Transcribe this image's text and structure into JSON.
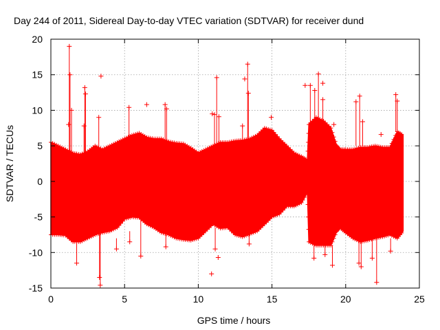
{
  "chart_data": {
    "type": "scatter",
    "title": "Day 244 of 2011, Sidereal Day-to-day VTEC variation (SDTVAR) for receiver dund",
    "xlabel": "GPS time / hours",
    "ylabel": "SDTVAR / TECUs",
    "xlim": [
      0,
      25
    ],
    "ylim": [
      -15,
      20
    ],
    "xticks": [
      0,
      5,
      10,
      15,
      20,
      25
    ],
    "yticks": [
      -15,
      -10,
      -5,
      0,
      5,
      10,
      15,
      20
    ],
    "grid": true,
    "series": [
      {
        "name": "SDTVAR",
        "color": "#ff0000",
        "marker": "plus",
        "envelope": {
          "x": [
            0.0,
            0.5,
            1.0,
            1.5,
            2.0,
            2.5,
            3.0,
            3.5,
            4.0,
            4.5,
            5.0,
            5.5,
            6.0,
            6.5,
            7.0,
            7.5,
            8.0,
            8.5,
            9.0,
            9.5,
            10.0,
            10.5,
            11.0,
            11.5,
            12.0,
            12.5,
            13.0,
            13.5,
            14.0,
            14.5,
            15.0,
            15.5,
            16.0,
            16.5,
            17.0,
            17.4,
            17.5,
            18.0,
            18.5,
            19.0,
            19.4,
            19.6,
            20.0,
            20.5,
            21.0,
            21.5,
            22.0,
            22.5,
            23.0,
            23.5,
            23.9
          ],
          "upper": [
            5.5,
            5.0,
            4.5,
            4.0,
            3.8,
            4.2,
            5.0,
            4.5,
            5.0,
            5.5,
            6.0,
            6.5,
            6.8,
            6.2,
            6.0,
            6.0,
            5.6,
            5.4,
            5.3,
            4.7,
            4.0,
            4.5,
            5.0,
            5.5,
            5.5,
            5.7,
            5.8,
            6.0,
            6.5,
            7.5,
            7.2,
            6.0,
            5.0,
            4.0,
            3.5,
            3.0,
            8.0,
            9.0,
            8.5,
            7.5,
            5.0,
            4.5,
            4.5,
            4.5,
            4.8,
            4.8,
            5.0,
            4.8,
            4.8,
            7.0,
            6.5
          ],
          "lower": [
            -7.5,
            -7.5,
            -7.6,
            -8.5,
            -8.5,
            -8.0,
            -7.5,
            -7.2,
            -7.0,
            -6.5,
            -5.3,
            -5.0,
            -5.1,
            -6.0,
            -6.5,
            -7.2,
            -7.5,
            -8.0,
            -8.2,
            -8.3,
            -8.0,
            -7.0,
            -6.0,
            -6.6,
            -6.5,
            -7.5,
            -7.8,
            -7.4,
            -7.0,
            -6.0,
            -5.0,
            -4.6,
            -3.5,
            -3.5,
            -3.0,
            -1.5,
            -8.5,
            -9.0,
            -9.0,
            -9.0,
            -7.0,
            -6.5,
            -7.2,
            -8.0,
            -8.5,
            -8.3,
            -8.0,
            -7.8,
            -7.5,
            -8.0,
            -7.0
          ]
        },
        "spikes": [
          {
            "x": 1.25,
            "from": 2.0,
            "to": 19.0
          },
          {
            "x": 1.3,
            "from": -5.0,
            "to": 15.0
          },
          {
            "x": 1.4,
            "from": -8.0,
            "to": 10.0
          },
          {
            "x": 1.75,
            "from": -8.0,
            "to": -11.5
          },
          {
            "x": 2.3,
            "from": 3.0,
            "to": 13.2
          },
          {
            "x": 2.35,
            "from": 3.0,
            "to": 12.3
          },
          {
            "x": 2.25,
            "from": 3.0,
            "to": 7.8
          },
          {
            "x": 3.35,
            "from": -7.0,
            "to": -14.6
          },
          {
            "x": 3.3,
            "from": -5.0,
            "to": -13.5
          },
          {
            "x": 3.25,
            "from": 4.0,
            "to": 9.0
          },
          {
            "x": 4.45,
            "from": -8.0,
            "to": -9.5
          },
          {
            "x": 5.3,
            "from": 5.0,
            "to": 10.4
          },
          {
            "x": 5.35,
            "from": -7.0,
            "to": -8.5
          },
          {
            "x": 6.1,
            "from": -5.0,
            "to": -10.5
          },
          {
            "x": 7.75,
            "from": 5.0,
            "to": 10.8
          },
          {
            "x": 7.85,
            "from": 5.0,
            "to": 10.2
          },
          {
            "x": 7.8,
            "from": -7.5,
            "to": -9.2
          },
          {
            "x": 11.25,
            "from": 5.0,
            "to": 14.6
          },
          {
            "x": 11.1,
            "from": 5.0,
            "to": 9.4
          },
          {
            "x": 11.4,
            "from": 5.0,
            "to": 9.1
          },
          {
            "x": 11.15,
            "from": -6.5,
            "to": -9.5
          },
          {
            "x": 13.35,
            "from": 6.0,
            "to": 16.5
          },
          {
            "x": 13.4,
            "from": 6.0,
            "to": 12.4
          },
          {
            "x": 13.0,
            "from": 6.0,
            "to": 7.8
          },
          {
            "x": 13.45,
            "from": -7.0,
            "to": -8.8
          },
          {
            "x": 17.6,
            "from": 8.0,
            "to": 13.5
          },
          {
            "x": 17.9,
            "from": 8.0,
            "to": 12.8
          },
          {
            "x": 18.15,
            "from": 8.0,
            "to": 15.1
          },
          {
            "x": 18.45,
            "from": 8.5,
            "to": 11.5
          },
          {
            "x": 17.85,
            "from": -8.0,
            "to": -10.8
          },
          {
            "x": 18.6,
            "from": -8.0,
            "to": -10.3
          },
          {
            "x": 19.1,
            "from": -9.0,
            "to": -11.8
          },
          {
            "x": 20.7,
            "from": 5.0,
            "to": 11.2
          },
          {
            "x": 20.95,
            "from": 5.0,
            "to": 12.0
          },
          {
            "x": 21.15,
            "from": 5.0,
            "to": 8.4
          },
          {
            "x": 20.9,
            "from": -8.0,
            "to": -11.5
          },
          {
            "x": 21.05,
            "from": -8.0,
            "to": -12.0
          },
          {
            "x": 22.1,
            "from": -8.0,
            "to": -14.2
          },
          {
            "x": 21.8,
            "from": -8.0,
            "to": -10.8
          },
          {
            "x": 23.05,
            "from": -8.0,
            "to": -9.8
          },
          {
            "x": 23.4,
            "from": 7.0,
            "to": 12.2
          },
          {
            "x": 23.5,
            "from": 7.0,
            "to": 11.3
          }
        ],
        "outliers": [
          {
            "x": 3.4,
            "y": 14.8
          },
          {
            "x": 6.5,
            "y": 10.8
          },
          {
            "x": 10.95,
            "y": 9.5
          },
          {
            "x": 10.9,
            "y": -13.0
          },
          {
            "x": 11.35,
            "y": -10.7
          },
          {
            "x": 13.15,
            "y": 14.4
          },
          {
            "x": 14.95,
            "y": 9.0
          },
          {
            "x": 17.25,
            "y": 13.5
          },
          {
            "x": 18.45,
            "y": 13.8
          },
          {
            "x": 19.2,
            "y": 8.0
          },
          {
            "x": 1.2,
            "y": 8.0
          },
          {
            "x": 22.4,
            "y": 6.6
          }
        ]
      }
    ]
  }
}
